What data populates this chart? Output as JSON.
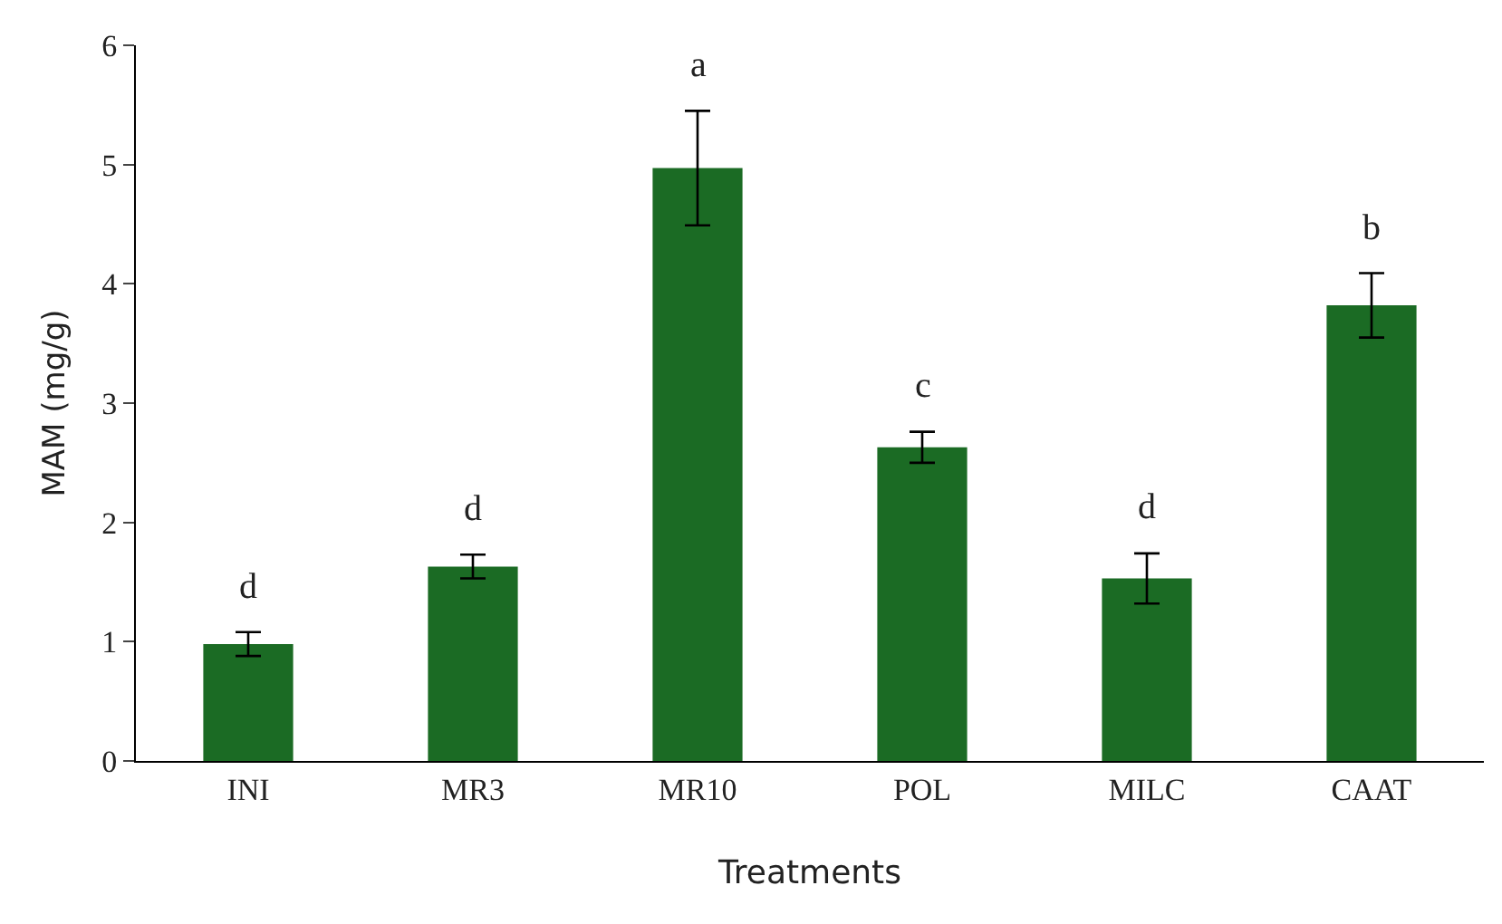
{
  "chart_data": {
    "type": "bar",
    "xlabel": "Treatments",
    "ylabel": "MAM (mg/g)",
    "categories": [
      "INI",
      "MR3",
      "MR10",
      "POL",
      "MILC",
      "CAAT"
    ],
    "values": [
      0.98,
      1.63,
      4.97,
      2.63,
      1.53,
      3.82
    ],
    "errors": [
      0.1,
      0.1,
      0.48,
      0.13,
      0.21,
      0.27
    ],
    "color": "#1b6b24",
    "ylim": [
      0,
      6
    ],
    "yticks": [
      0,
      1,
      2,
      3,
      4,
      5,
      6
    ],
    "legend": false,
    "annotations": [
      "d",
      "d",
      "a",
      "c",
      "d",
      "b"
    ]
  }
}
